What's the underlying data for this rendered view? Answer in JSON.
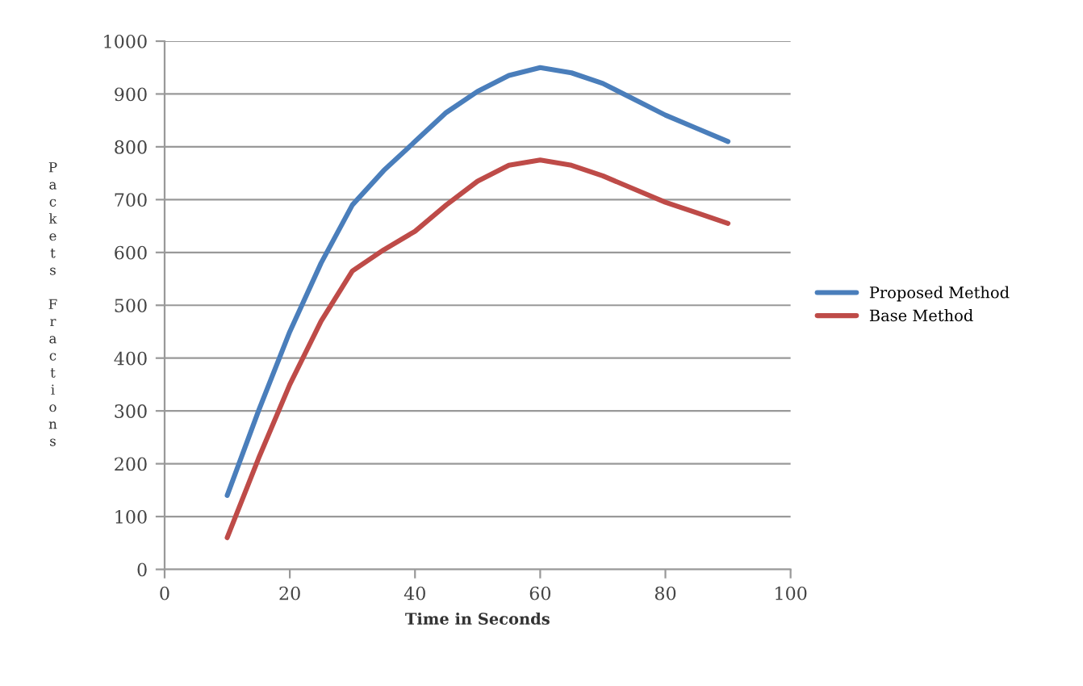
{
  "chart_data": {
    "type": "line",
    "xlabel": "Time in Seconds",
    "ylabel": "Packets Fractions",
    "x": [
      10,
      15,
      20,
      25,
      30,
      35,
      40,
      45,
      50,
      55,
      60,
      65,
      70,
      75,
      80,
      85,
      90
    ],
    "series": [
      {
        "name": "Proposed Method",
        "color": "#4a7ebb",
        "values": [
          140,
          300,
          450,
          580,
          690,
          755,
          810,
          865,
          905,
          935,
          950,
          940,
          920,
          890,
          860,
          835,
          810
        ]
      },
      {
        "name": "Base Method",
        "color": "#be4b48",
        "values": [
          60,
          210,
          350,
          470,
          565,
          605,
          640,
          690,
          735,
          765,
          775,
          765,
          745,
          720,
          695,
          675,
          655
        ]
      }
    ],
    "xlim": [
      0,
      100
    ],
    "xticks": [
      0,
      20,
      40,
      60,
      80,
      100
    ],
    "ylim": [
      0,
      1000
    ],
    "yticks": [
      0,
      100,
      200,
      300,
      400,
      500,
      600,
      700,
      800,
      900,
      1000
    ],
    "grid": "y",
    "legend": "right",
    "marker": "none",
    "line_style": "solid"
  }
}
